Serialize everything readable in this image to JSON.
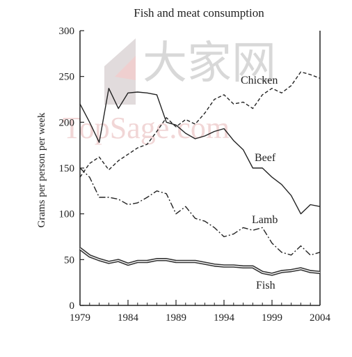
{
  "chart_data": {
    "type": "line",
    "title": "Fish and meat consumption",
    "xlabel": "",
    "ylabel": "Grams per person per week",
    "xlim": [
      1979,
      2004
    ],
    "ylim": [
      0,
      300
    ],
    "x_ticks": [
      "1979",
      "1984",
      "1989",
      "1994",
      "1999",
      "2004"
    ],
    "y_ticks": [
      "0",
      "50",
      "100",
      "150",
      "200",
      "250",
      "300"
    ],
    "grid": false,
    "legend": "inline labels",
    "series": [
      {
        "name": "Chicken",
        "style": "dashed",
        "x": [
          1979,
          1980,
          1981,
          1982,
          1983,
          1984,
          1985,
          1986,
          1987,
          1988,
          1989,
          1990,
          1991,
          1992,
          1993,
          1994,
          1995,
          1996,
          1997,
          1998,
          1999,
          2000,
          2001,
          2002,
          2003,
          2004
        ],
        "values": [
          140,
          155,
          162,
          148,
          158,
          165,
          172,
          176,
          190,
          205,
          195,
          203,
          198,
          210,
          225,
          230,
          220,
          222,
          215,
          230,
          237,
          232,
          240,
          255,
          252,
          248
        ]
      },
      {
        "name": "Beef",
        "style": "solid",
        "x": [
          1979,
          1980,
          1981,
          1982,
          1983,
          1984,
          1985,
          1986,
          1987,
          1988,
          1989,
          1990,
          1991,
          1992,
          1993,
          1994,
          1995,
          1996,
          1997,
          1998,
          1999,
          2000,
          2001,
          2002,
          2003,
          2004
        ],
        "values": [
          220,
          200,
          178,
          237,
          215,
          232,
          233,
          232,
          230,
          200,
          197,
          188,
          182,
          185,
          190,
          193,
          180,
          170,
          150,
          150,
          140,
          132,
          120,
          100,
          110,
          108
        ]
      },
      {
        "name": "Lamb",
        "style": "dash-dot",
        "x": [
          1979,
          1980,
          1981,
          1982,
          1983,
          1984,
          1985,
          1986,
          1987,
          1988,
          1989,
          1990,
          1991,
          1992,
          1993,
          1994,
          1995,
          1996,
          1997,
          1998,
          1999,
          2000,
          2001,
          2002,
          2003,
          2004
        ],
        "values": [
          150,
          140,
          118,
          118,
          116,
          110,
          112,
          118,
          125,
          122,
          100,
          108,
          95,
          92,
          85,
          75,
          78,
          85,
          82,
          85,
          68,
          58,
          55,
          65,
          55,
          58
        ]
      },
      {
        "name": "Fish",
        "style": "double",
        "x": [
          1979,
          1980,
          1981,
          1982,
          1983,
          1984,
          1985,
          1986,
          1987,
          1988,
          1989,
          1990,
          1991,
          1992,
          1993,
          1994,
          1995,
          1996,
          1997,
          1998,
          1999,
          2000,
          2001,
          2002,
          2003,
          2004
        ],
        "values": [
          62,
          54,
          50,
          47,
          49,
          45,
          48,
          48,
          50,
          50,
          48,
          48,
          48,
          46,
          44,
          43,
          43,
          42,
          42,
          36,
          34,
          37,
          38,
          40,
          37,
          36
        ]
      }
    ]
  },
  "watermark": {
    "logo_text": "大家网",
    "site_text": "TopSage.com"
  }
}
